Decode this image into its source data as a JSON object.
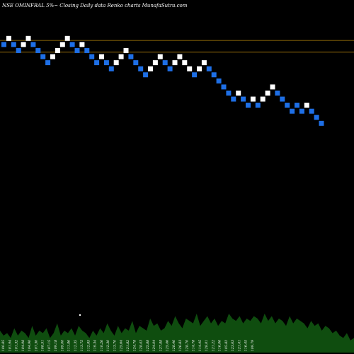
{
  "chart_data": {
    "type": "renko",
    "title": "NSE OMINFRAL  5%~  Closing Daily data  Renko  charts MunafaSutra.com",
    "colors": {
      "background": "#000000",
      "up_brick": "#ffffff",
      "down_brick": "#1e6fe6",
      "level_line": "#b8860b",
      "volume": "#0f4d0f",
      "text": "#ffffff"
    },
    "price_range": [
      80,
      150
    ],
    "levels": [
      142,
      139.7
    ],
    "bricks": [
      {
        "dir": "down",
        "value": 141.2
      },
      {
        "dir": "up",
        "value": 142.4
      },
      {
        "dir": "down",
        "value": 141.2
      },
      {
        "dir": "down",
        "value": 140.0
      },
      {
        "dir": "up",
        "value": 141.2
      },
      {
        "dir": "up",
        "value": 142.4
      },
      {
        "dir": "down",
        "value": 141.2
      },
      {
        "dir": "down",
        "value": 140.0
      },
      {
        "dir": "down",
        "value": 138.8
      },
      {
        "dir": "down",
        "value": 137.6
      },
      {
        "dir": "up",
        "value": 138.8
      },
      {
        "dir": "up",
        "value": 140.0
      },
      {
        "dir": "up",
        "value": 141.2
      },
      {
        "dir": "up",
        "value": 142.4
      },
      {
        "dir": "down",
        "value": 141.2
      },
      {
        "dir": "down",
        "value": 140.0
      },
      {
        "dir": "up",
        "value": 141.2
      },
      {
        "dir": "down",
        "value": 140.0
      },
      {
        "dir": "down",
        "value": 138.8
      },
      {
        "dir": "down",
        "value": 137.6
      },
      {
        "dir": "up",
        "value": 138.8
      },
      {
        "dir": "down",
        "value": 137.6
      },
      {
        "dir": "down",
        "value": 136.4
      },
      {
        "dir": "up",
        "value": 137.6
      },
      {
        "dir": "up",
        "value": 138.8
      },
      {
        "dir": "up",
        "value": 140.0
      },
      {
        "dir": "down",
        "value": 138.8
      },
      {
        "dir": "down",
        "value": 137.6
      },
      {
        "dir": "down",
        "value": 136.4
      },
      {
        "dir": "down",
        "value": 135.2
      },
      {
        "dir": "up",
        "value": 136.4
      },
      {
        "dir": "up",
        "value": 137.6
      },
      {
        "dir": "up",
        "value": 138.8
      },
      {
        "dir": "down",
        "value": 137.6
      },
      {
        "dir": "down",
        "value": 136.4
      },
      {
        "dir": "up",
        "value": 137.6
      },
      {
        "dir": "up",
        "value": 138.8
      },
      {
        "dir": "up",
        "value": 137.6
      },
      {
        "dir": "up",
        "value": 136.4
      },
      {
        "dir": "down",
        "value": 135.2
      },
      {
        "dir": "up",
        "value": 136.4
      },
      {
        "dir": "up",
        "value": 137.6
      },
      {
        "dir": "down",
        "value": 136.4
      },
      {
        "dir": "down",
        "value": 135.2
      },
      {
        "dir": "down",
        "value": 134.0
      },
      {
        "dir": "down",
        "value": 132.8
      },
      {
        "dir": "down",
        "value": 131.6
      },
      {
        "dir": "down",
        "value": 130.4
      },
      {
        "dir": "up",
        "value": 131.6
      },
      {
        "dir": "down",
        "value": 130.4
      },
      {
        "dir": "down",
        "value": 129.2
      },
      {
        "dir": "up",
        "value": 130.4
      },
      {
        "dir": "down",
        "value": 129.2
      },
      {
        "dir": "up",
        "value": 130.4
      },
      {
        "dir": "up",
        "value": 131.6
      },
      {
        "dir": "up",
        "value": 132.8
      },
      {
        "dir": "down",
        "value": 131.6
      },
      {
        "dir": "down",
        "value": 130.4
      },
      {
        "dir": "down",
        "value": 129.2
      },
      {
        "dir": "down",
        "value": 128.0
      },
      {
        "dir": "down",
        "value": 129.2
      },
      {
        "dir": "down",
        "value": 128.0
      },
      {
        "dir": "up",
        "value": 129.2
      },
      {
        "dir": "down",
        "value": 128.0
      },
      {
        "dir": "down",
        "value": 126.8
      },
      {
        "dir": "down",
        "value": 125.6
      }
    ],
    "volume": [
      9,
      7,
      8,
      6,
      10,
      7,
      9,
      8,
      6,
      11,
      7,
      9,
      8,
      10,
      6,
      8,
      12,
      7,
      9,
      8,
      10,
      7,
      11,
      9,
      8,
      6,
      9,
      7,
      10,
      8,
      12,
      9,
      7,
      11,
      8,
      10,
      9,
      13,
      8,
      11,
      10,
      9,
      14,
      11,
      12,
      9,
      10,
      13,
      11,
      15,
      12,
      10,
      14,
      13,
      12,
      16,
      11,
      13,
      15,
      12,
      14,
      11,
      13,
      12,
      16,
      14,
      13,
      15,
      12,
      14,
      13,
      15,
      14,
      12,
      16,
      13,
      15,
      12,
      14,
      13,
      11,
      15,
      12,
      14,
      13,
      12,
      10,
      13,
      11,
      12,
      9,
      11,
      10,
      8,
      9,
      7,
      6,
      8,
      5,
      6
    ],
    "volume_labels": [
      "100.85",
      "101.94",
      "101.32",
      "104.98",
      "104.90",
      "107.30",
      "108.51",
      "107.15",
      "109.18",
      "109.00",
      "111.86",
      "112.35",
      "113.75",
      "112.85",
      "119.34",
      "110.26",
      "112.30",
      "113.70",
      "125.64",
      "121.82",
      "124.78",
      "128.43",
      "125.88",
      "124.04",
      "127.88",
      "125.46",
      "128.46",
      "126.83",
      "128.70",
      "114.78",
      "114.45",
      "128.01",
      "121.22",
      "116.06",
      "105.82",
      "123.63",
      "121.41",
      "116.45",
      "109.79"
    ]
  }
}
